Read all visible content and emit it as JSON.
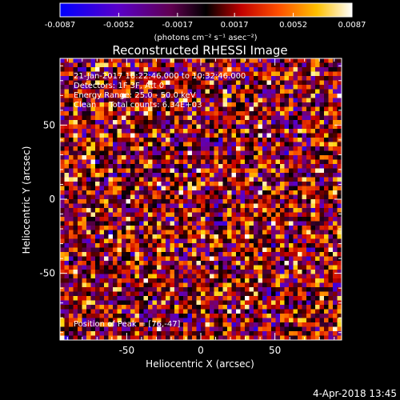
{
  "chart_data": {
    "type": "heatmap",
    "title": "Reconstructed RHESSI Image",
    "xlabel": "Heliocentric X (arcsec)",
    "ylabel": "Heliocentric Y (arcsec)",
    "xlim": [
      -95,
      95
    ],
    "ylim": [
      -95,
      95
    ],
    "x_ticks": [
      "-50",
      "0",
      "50"
    ],
    "y_ticks": [
      "50",
      "0",
      "-50"
    ],
    "x_tick_values": [
      -50,
      0,
      50
    ],
    "y_tick_values": [
      50,
      0,
      -50
    ],
    "colorbar": {
      "range": [
        -0.0087,
        0.0087
      ],
      "tick_labels": [
        "-0.0087",
        "-0.0052",
        "-0.0017",
        "0.0017",
        "0.0052",
        "0.0087"
      ],
      "tick_values": [
        -0.0087,
        -0.0052,
        -0.0017,
        0.0017,
        0.0052,
        0.0087
      ],
      "unit_label": "(photons cm⁻² s⁻¹ asec⁻²)",
      "colormap": [
        "#0000ff",
        "#5a00c8",
        "#7a0060",
        "#000000",
        "#c80000",
        "#ff6000",
        "#ffd000",
        "#ffffff"
      ]
    },
    "annotations": [
      "21-Jan-2017 10:22:46.000 to 10:32:46.000",
      "Detectors: 1F 3F, Att 0",
      "Energy Range: 25.0 - 50.0 keV",
      "Clean     Total counts: 6.34E+03"
    ],
    "peak_label": "Position of Peak = [76,-47]",
    "peak": [
      76,
      -47
    ],
    "grid": false
  },
  "footer": {
    "timestamp": "4-Apr-2018 13:45"
  }
}
